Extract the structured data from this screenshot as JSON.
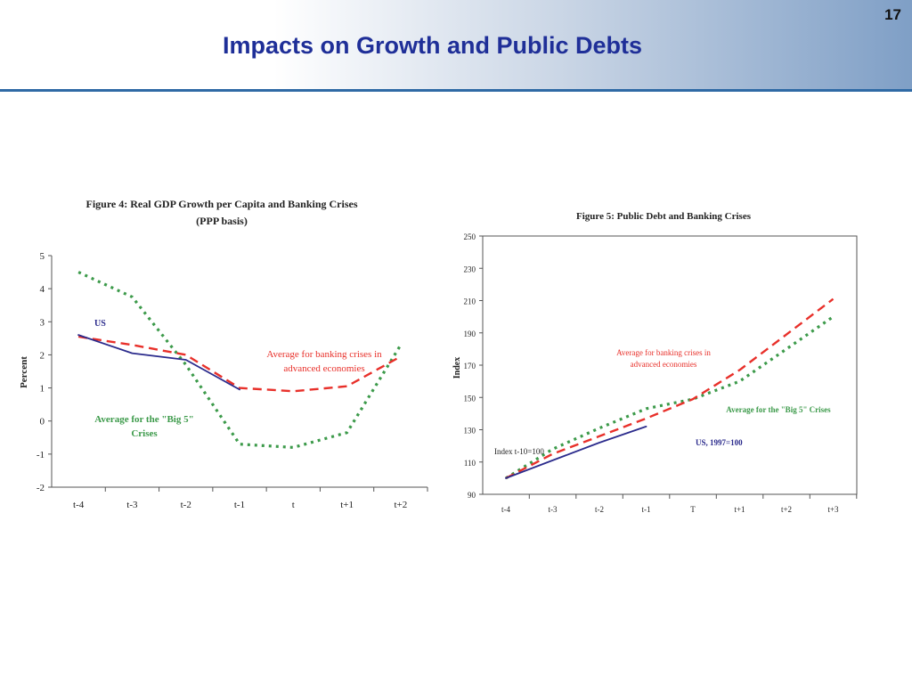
{
  "slide": {
    "title": "Impacts on Growth and Public Debts",
    "page_number": "17"
  },
  "chart_data": [
    {
      "type": "line",
      "title": "Figure 4:  Real GDP Growth per Capita and Banking Crises",
      "subtitle": "(PPP basis)",
      "ylabel": "Percent",
      "xlabel": "",
      "categories": [
        "t-4",
        "t-3",
        "t-2",
        "t-1",
        "t",
        "t+1",
        "t+2"
      ],
      "ylim": [
        -2,
        5
      ],
      "yticks": [
        -2,
        -1,
        0,
        1,
        2,
        3,
        4,
        5
      ],
      "grid": false,
      "series": [
        {
          "name": "US",
          "color": "#2b2b8c",
          "dash": "solid",
          "values": [
            2.6,
            2.05,
            1.85,
            0.95,
            null,
            null,
            null
          ]
        },
        {
          "name": "Average for banking crises in advanced economies",
          "color": "#e8302a",
          "dash": "long",
          "values": [
            2.55,
            2.3,
            2.0,
            1.0,
            0.9,
            1.05,
            1.95
          ]
        },
        {
          "name": "Average for the \"Big 5\" Crises",
          "color": "#3c9a4a",
          "dash": "dot",
          "values": [
            4.5,
            3.75,
            1.7,
            -0.7,
            -0.8,
            -0.35,
            2.3
          ]
        }
      ],
      "annotations": [
        {
          "series": 0,
          "lines": [
            "US"
          ]
        },
        {
          "series": 1,
          "lines": [
            "Average for banking crises in",
            "advanced economies"
          ]
        },
        {
          "series": 2,
          "lines": [
            "Average for the \"Big 5\"",
            "Crises"
          ]
        }
      ]
    },
    {
      "type": "line",
      "title": "Figure 5:  Public Debt and Banking Crises",
      "ylabel": "Index",
      "xlabel": "",
      "categories": [
        "t-4",
        "t-3",
        "t-2",
        "t-1",
        "T",
        "t+1",
        "t+2",
        "t+3"
      ],
      "ylim": [
        90,
        250
      ],
      "yticks": [
        90,
        110,
        130,
        150,
        170,
        190,
        210,
        230,
        250
      ],
      "grid": false,
      "series": [
        {
          "name": "US, 1997=100",
          "color": "#2b2b8c",
          "dash": "solid",
          "values": [
            100,
            111,
            122,
            132,
            null,
            null,
            null,
            null
          ]
        },
        {
          "name": "Average for banking crises in advanced economies",
          "color": "#e8302a",
          "dash": "long",
          "values": [
            100,
            115,
            126,
            137,
            149,
            167,
            189,
            211
          ]
        },
        {
          "name": "Average for the \"Big 5\" Crises",
          "color": "#3c9a4a",
          "dash": "dot",
          "values": [
            100,
            118,
            131,
            143,
            149,
            160,
            180,
            200
          ]
        }
      ],
      "annotations": [
        {
          "series": 0,
          "lines": [
            "US, 1997=100"
          ]
        },
        {
          "series": 1,
          "lines": [
            "Average for banking crises in",
            "advanced economies"
          ]
        },
        {
          "series": 2,
          "lines": [
            "Average for the \"Big 5\" Crises"
          ]
        },
        {
          "series": -1,
          "lines": [
            "Index t-10=100"
          ]
        }
      ]
    }
  ]
}
